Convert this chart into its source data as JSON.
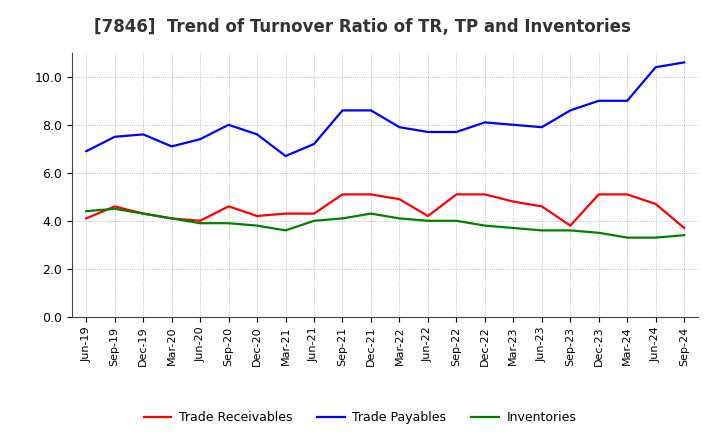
{
  "title": "[7846]  Trend of Turnover Ratio of TR, TP and Inventories",
  "labels": [
    "Jun-19",
    "Sep-19",
    "Dec-19",
    "Mar-20",
    "Jun-20",
    "Sep-20",
    "Dec-20",
    "Mar-21",
    "Jun-21",
    "Sep-21",
    "Dec-21",
    "Mar-22",
    "Jun-22",
    "Sep-22",
    "Dec-22",
    "Mar-23",
    "Jun-23",
    "Sep-23",
    "Dec-23",
    "Mar-24",
    "Jun-24",
    "Sep-24"
  ],
  "trade_receivables": [
    4.1,
    4.6,
    4.3,
    4.1,
    4.0,
    4.6,
    4.2,
    4.3,
    4.3,
    5.1,
    5.1,
    4.9,
    4.2,
    5.1,
    5.1,
    4.8,
    4.6,
    3.8,
    5.1,
    5.1,
    4.7,
    3.7
  ],
  "trade_payables": [
    6.9,
    7.5,
    7.6,
    7.1,
    7.4,
    8.0,
    7.6,
    6.7,
    7.2,
    8.6,
    8.6,
    7.9,
    7.7,
    7.7,
    8.1,
    8.0,
    7.9,
    8.6,
    9.0,
    9.0,
    10.4,
    10.6
  ],
  "inventories": [
    4.4,
    4.5,
    4.3,
    4.1,
    3.9,
    3.9,
    3.8,
    3.6,
    4.0,
    4.1,
    4.3,
    4.1,
    4.0,
    4.0,
    3.8,
    3.7,
    3.6,
    3.6,
    3.5,
    3.3,
    3.3,
    3.4
  ],
  "ylim": [
    0.0,
    11.0
  ],
  "yticks": [
    0.0,
    2.0,
    4.0,
    6.0,
    8.0,
    10.0
  ],
  "colors": {
    "trade_receivables": "#FF0000",
    "trade_payables": "#0000FF",
    "inventories": "#008000"
  },
  "legend_labels": [
    "Trade Receivables",
    "Trade Payables",
    "Inventories"
  ],
  "background_color": "#FFFFFF",
  "grid_color": "#AAAAAA",
  "title_fontsize": 12,
  "tick_fontsize": 8,
  "legend_fontsize": 9,
  "linewidth": 1.6
}
